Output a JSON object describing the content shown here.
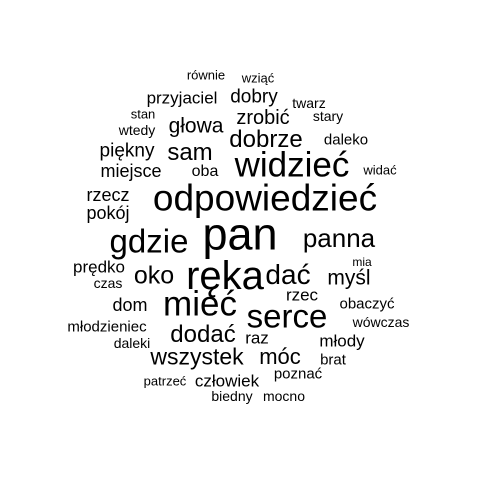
{
  "word_cloud": {
    "text_color": "#000000",
    "background_color": "#ffffff",
    "words": [
      "równie",
      "wziąć",
      "przyjaciel",
      "dobry",
      "twarz",
      "stan",
      "zrobić",
      "stary",
      "wtedy",
      "głowa",
      "dobrze",
      "daleko",
      "piękny",
      "sam",
      "miejsce",
      "oba",
      "widzieć",
      "widać",
      "rzecz",
      "odpowiedzieć",
      "pokój",
      "gdzie",
      "pan",
      "panna",
      "prędko",
      "czas",
      "oko",
      "ręka",
      "dać",
      "myśl",
      "mia",
      "dom",
      "rzec",
      "obaczyć",
      "mieć",
      "serce",
      "wówczas",
      "młodzieniec",
      "dodać",
      "raz",
      "daleki",
      "młody",
      "wszystek",
      "móc",
      "brat",
      "poznać",
      "patrzeć",
      "człowiek",
      "biedny",
      "mocno"
    ]
  }
}
